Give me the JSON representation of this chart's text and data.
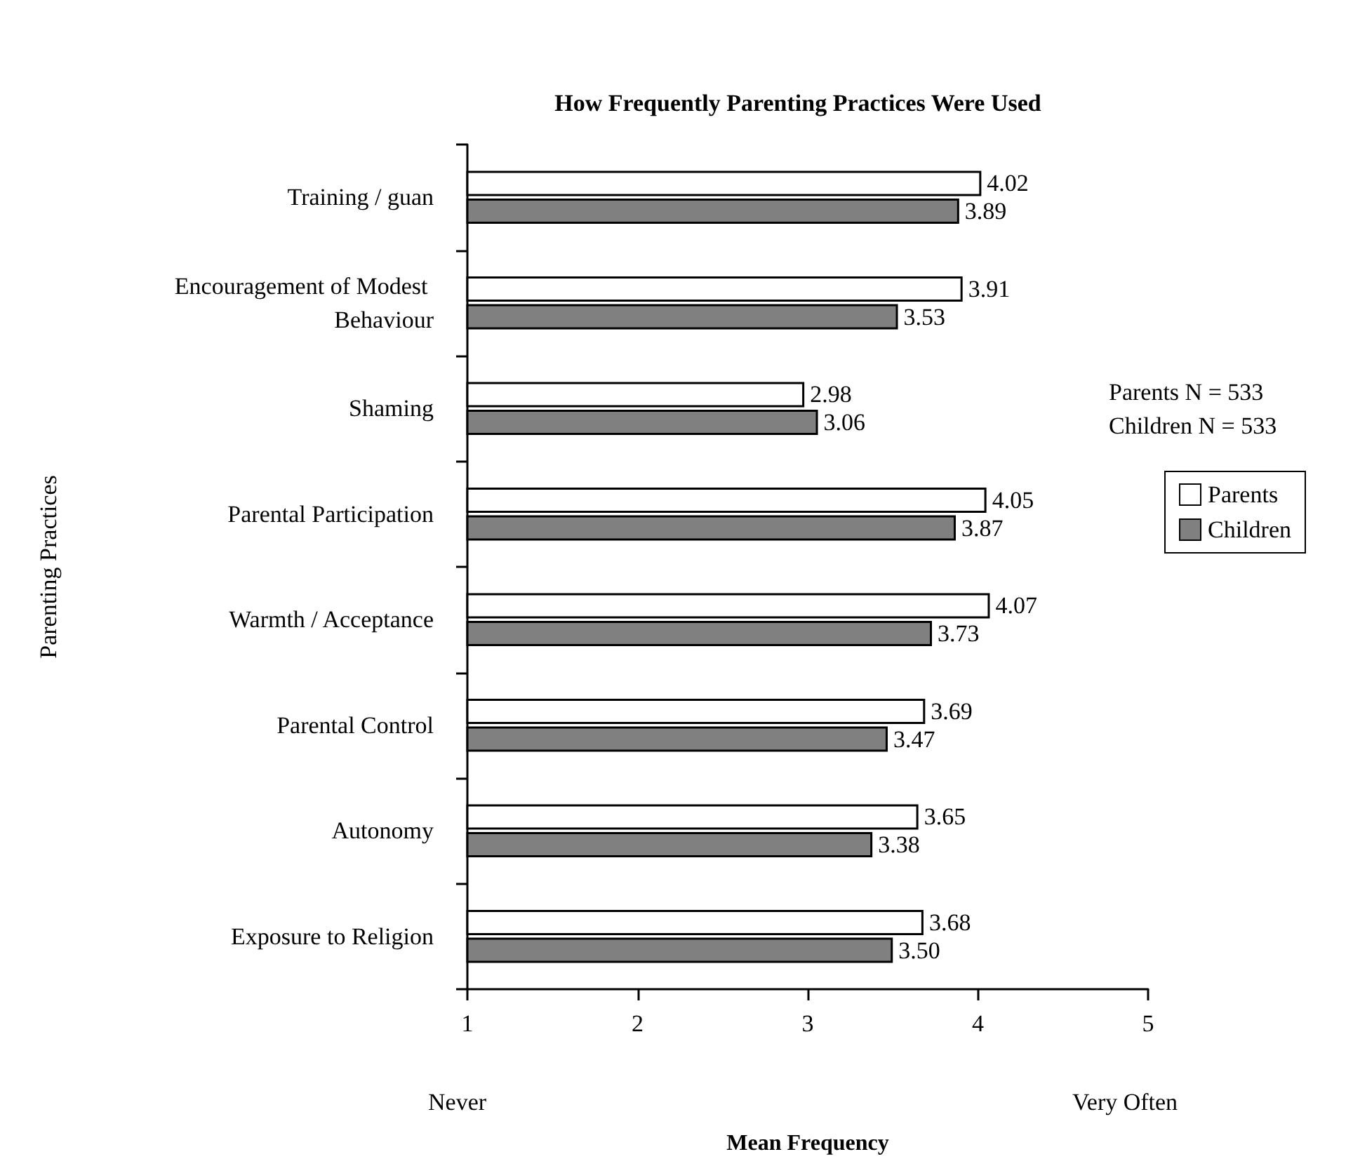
{
  "chart_data": {
    "type": "bar",
    "orientation": "horizontal",
    "title": "How Frequently Parenting Practices Were Used",
    "xlabel": "Mean Frequency",
    "ylabel": "Parenting Practices",
    "categories": [
      "Training / guan",
      "Encouragement of Modest Behaviour",
      "Shaming",
      "Parental Participation",
      "Warmth / Acceptance",
      "Parental Control",
      "Autonomy",
      "Exposure to Religion"
    ],
    "series": [
      {
        "name": "Parents",
        "color": "#ffffff",
        "values": [
          4.02,
          3.91,
          2.98,
          4.05,
          4.07,
          3.69,
          3.65,
          3.68
        ],
        "value_labels": [
          "4.02",
          "3.91",
          "2.98",
          "4.05",
          "4.07",
          "3.69",
          "3.65",
          "3.68"
        ]
      },
      {
        "name": "Children",
        "color": "#808080",
        "values": [
          3.89,
          3.53,
          3.06,
          3.87,
          3.73,
          3.47,
          3.38,
          3.5
        ],
        "value_labels": [
          "3.89",
          "3.53",
          "3.06",
          "3.87",
          "3.73",
          "3.47",
          "3.38",
          "3.50"
        ]
      }
    ],
    "xlim": [
      1,
      5
    ],
    "xticks": [
      1,
      2,
      3,
      4,
      5
    ],
    "grid": false,
    "legend": "right",
    "annotations": [
      "Never",
      "Very Often",
      "Parents N = 533",
      "Children N = 533"
    ]
  }
}
